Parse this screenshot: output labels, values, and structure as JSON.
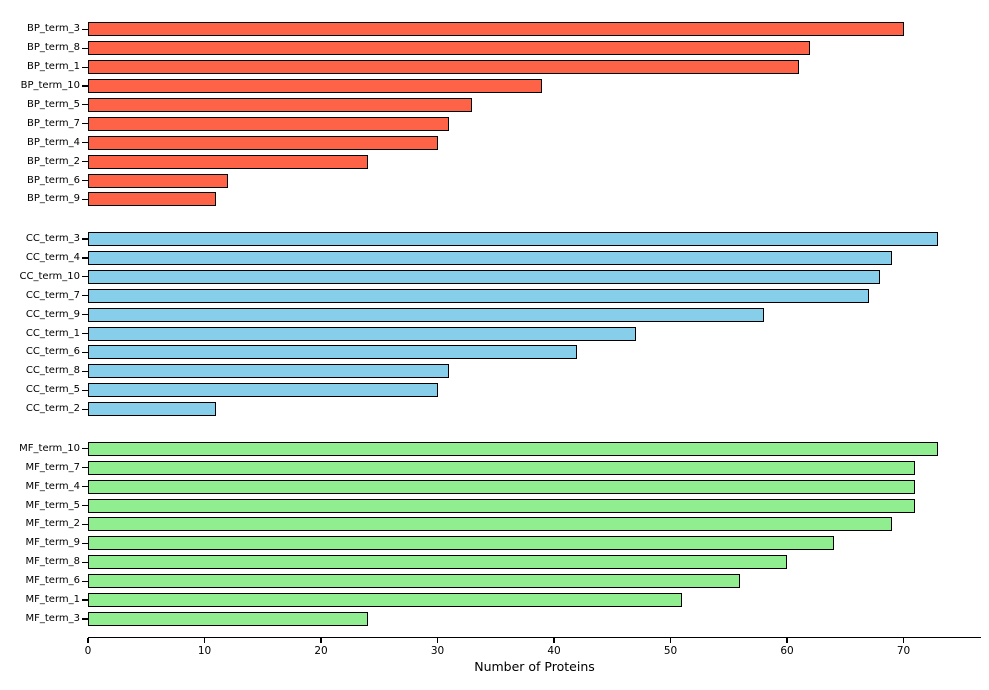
{
  "chart_data": {
    "type": "bar",
    "orientation": "horizontal",
    "title": "",
    "xlabel": "Number of Proteins",
    "ylabel": "",
    "xlim": [
      0,
      76.65
    ],
    "x_ticks": [
      0,
      10,
      20,
      30,
      40,
      50,
      60,
      70
    ],
    "grid": false,
    "legend_position": "none",
    "bar_edge_color": "#000000",
    "background_color": "#ffffff",
    "groups": [
      {
        "name": "BP",
        "color": "#FF6347",
        "categories": [
          "BP_term_3",
          "BP_term_8",
          "BP_term_1",
          "BP_term_10",
          "BP_term_5",
          "BP_term_7",
          "BP_term_4",
          "BP_term_2",
          "BP_term_6",
          "BP_term_9"
        ],
        "values": [
          70,
          62,
          61,
          39,
          33,
          31,
          30,
          24,
          12,
          11
        ]
      },
      {
        "name": "CC",
        "color": "#87CEEB",
        "categories": [
          "CC_term_3",
          "CC_term_4",
          "CC_term_10",
          "CC_term_7",
          "CC_term_9",
          "CC_term_1",
          "CC_term_6",
          "CC_term_8",
          "CC_term_5",
          "CC_term_2"
        ],
        "values": [
          73,
          69,
          68,
          67,
          58,
          47,
          42,
          31,
          30,
          11
        ]
      },
      {
        "name": "MF",
        "color": "#90EE90",
        "categories": [
          "MF_term_10",
          "MF_term_7",
          "MF_term_4",
          "MF_term_5",
          "MF_term_2",
          "MF_term_9",
          "MF_term_8",
          "MF_term_6",
          "MF_term_1",
          "MF_term_3"
        ],
        "values": [
          73,
          71,
          71,
          71,
          69,
          64,
          60,
          56,
          51,
          24
        ]
      }
    ]
  }
}
